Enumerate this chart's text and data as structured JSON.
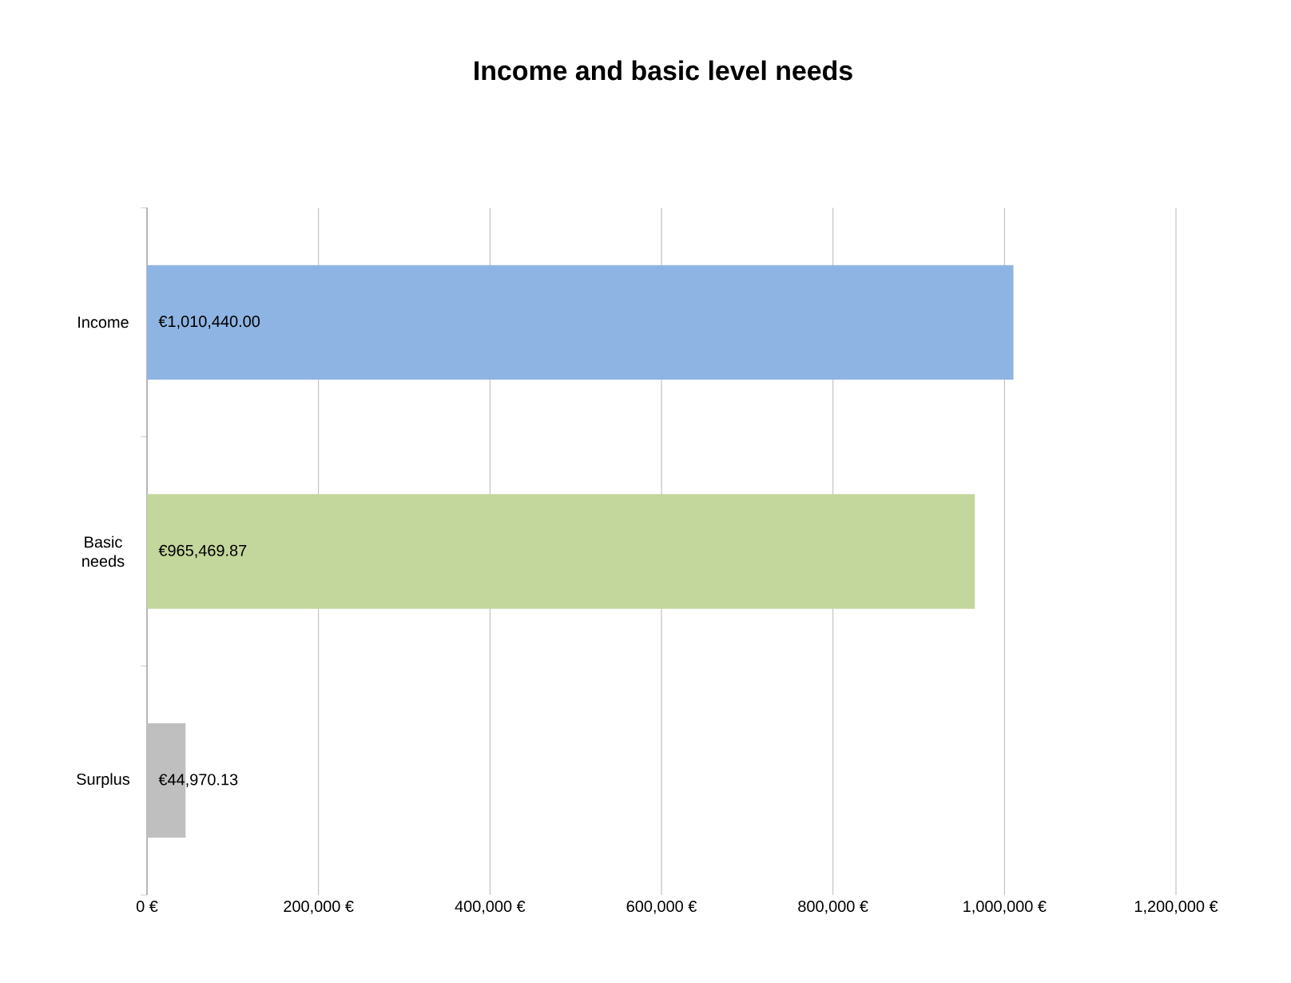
{
  "chart_data": {
    "type": "bar",
    "orientation": "horizontal",
    "title": "Income and basic level needs",
    "categories": [
      "Income",
      "Basic needs",
      "Surplus"
    ],
    "values": [
      1010440.0,
      965469.87,
      44970.13
    ],
    "value_labels": [
      "€1,010,440.00",
      "€965,469.87",
      "€44,970.13"
    ],
    "colors": [
      "#8eb4e3",
      "#c3d69b",
      "#bfbfbf"
    ],
    "xlim": [
      0,
      1200000
    ],
    "xticks": [
      {
        "value": 0,
        "label": "0 €"
      },
      {
        "value": 200000,
        "label": "200,000 €"
      },
      {
        "value": 400000,
        "label": "400,000 €"
      },
      {
        "value": 600000,
        "label": "600,000 €"
      },
      {
        "value": 800000,
        "label": "800,000 €"
      },
      {
        "value": 1000000,
        "label": "1,000,000 €"
      },
      {
        "value": 1200000,
        "label": "1,200,000 €"
      }
    ],
    "grid": "x"
  }
}
